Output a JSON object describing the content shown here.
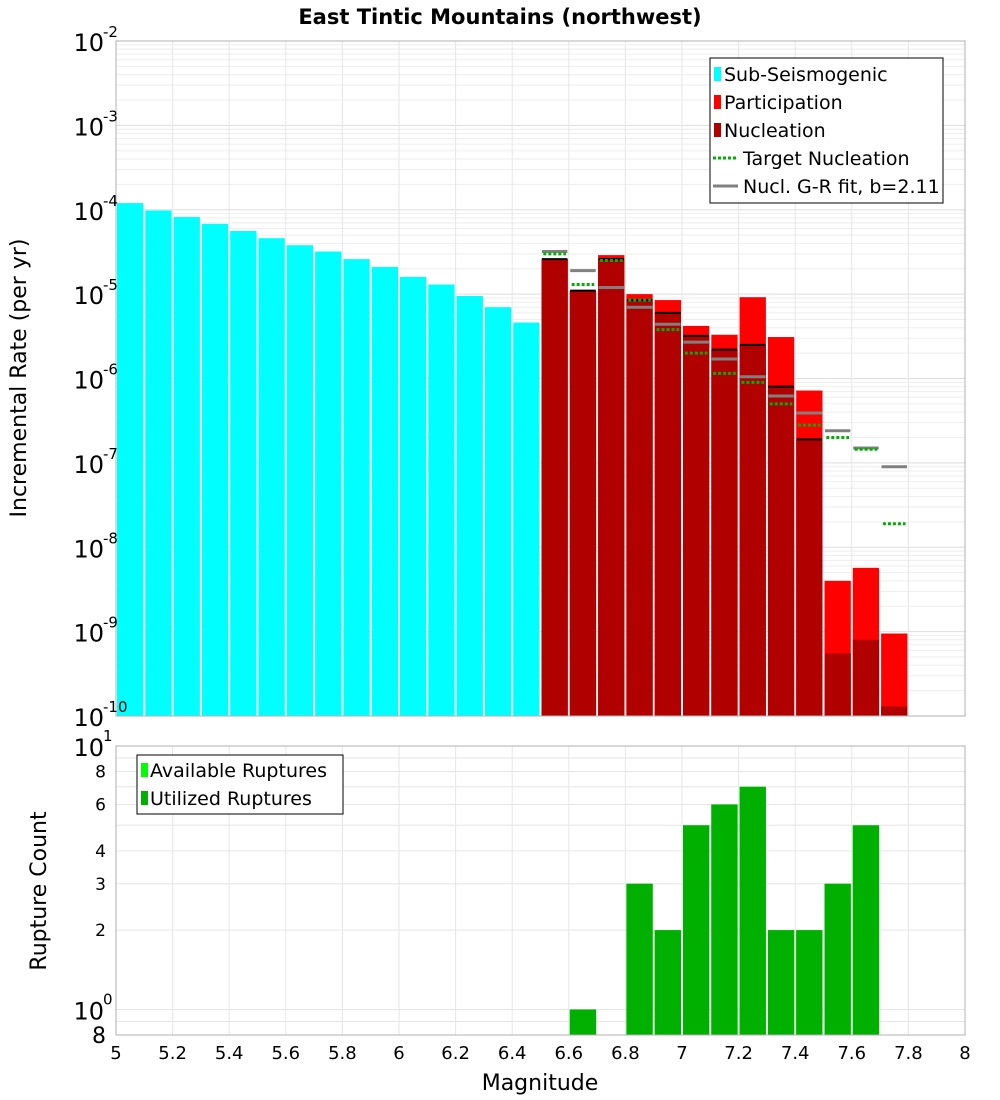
{
  "chart_data": [
    {
      "type": "bar",
      "title": "East Tintic Mountains (northwest)",
      "xlabel": "",
      "ylabel": "Incremental Rate (per yr)",
      "y_scale": "log",
      "xlim": [
        5,
        8
      ],
      "ylim": [
        1e-10,
        0.01
      ],
      "bin_width": 0.1,
      "grid": true,
      "legend_position": "top-right",
      "ytick_labels": [
        {
          "base": "10",
          "exp": "-10"
        },
        {
          "base": "10",
          "exp": "-9"
        },
        {
          "base": "10",
          "exp": "-8"
        },
        {
          "base": "10",
          "exp": "-7"
        },
        {
          "base": "10",
          "exp": "-6"
        },
        {
          "base": "10",
          "exp": "-5"
        },
        {
          "base": "10",
          "exp": "-4"
        },
        {
          "base": "10",
          "exp": "-3"
        },
        {
          "base": "10",
          "exp": "-2"
        }
      ],
      "legend": [
        {
          "label": "Sub-Seismogenic",
          "color": "#00ffff",
          "style": "bar"
        },
        {
          "label": "Participation",
          "color": "#ff0000",
          "style": "bar"
        },
        {
          "label": "Nucleation",
          "color": "#b00000",
          "style": "bar"
        },
        {
          "label": "Target Nucleation",
          "color": "#00b000",
          "style": "dotted"
        },
        {
          "label": "Nucl. G-R fit, b=2.11",
          "color": "#808080",
          "style": "line"
        }
      ],
      "series": [
        {
          "name": "Sub-Seismogenic",
          "color": "#00ffff",
          "x": [
            5.05,
            5.15,
            5.25,
            5.35,
            5.45,
            5.55,
            5.65,
            5.75,
            5.85,
            5.95,
            6.05,
            6.15,
            6.25,
            6.35,
            6.45
          ],
          "values": [
            0.00012,
            9.8e-05,
            8.2e-05,
            6.8e-05,
            5.6e-05,
            4.6e-05,
            3.8e-05,
            3.2e-05,
            2.6e-05,
            2.1e-05,
            1.6e-05,
            1.3e-05,
            9.5e-06,
            7e-06,
            4.6e-06
          ]
        },
        {
          "name": "Participation",
          "color": "#ff0000",
          "x": [
            6.55,
            6.65,
            6.75,
            6.85,
            6.95,
            7.05,
            7.15,
            7.25,
            7.35,
            7.45,
            7.55,
            7.65,
            7.75
          ],
          "values": [
            2.6e-05,
            1.1e-05,
            2.9e-05,
            1e-05,
            8.5e-06,
            4.2e-06,
            3.3e-06,
            9.2e-06,
            3.1e-06,
            7.2e-07,
            4e-09,
            5.7e-09,
            9.5e-10
          ]
        },
        {
          "name": "Nucleation",
          "color": "#b00000",
          "x": [
            6.55,
            6.65,
            6.75,
            6.85,
            6.95,
            7.05,
            7.15,
            7.25,
            7.35,
            7.45,
            7.55,
            7.65,
            7.75
          ],
          "values": [
            2.6e-05,
            1.1e-05,
            2.6e-05,
            8.5e-06,
            6e-06,
            3.2e-06,
            2.2e-06,
            2.5e-06,
            8e-07,
            1.9e-07,
            5.5e-10,
            8e-10,
            1.3e-10
          ]
        },
        {
          "name": "Target Nucleation",
          "color": "#00b000",
          "x": [
            6.55,
            6.65,
            6.75,
            6.85,
            6.95,
            7.05,
            7.15,
            7.25,
            7.35,
            7.45,
            7.55,
            7.65,
            7.75
          ],
          "values": [
            3e-05,
            1.3e-05,
            2.5e-05,
            8.5e-06,
            3.8e-06,
            2e-06,
            1.15e-06,
            9e-07,
            5e-07,
            2.8e-07,
            2e-07,
            1.45e-07,
            1.9e-08
          ]
        },
        {
          "name": "Nucl. G-R fit, b=2.11",
          "color": "#808080",
          "x": [
            6.55,
            6.65,
            6.75,
            6.85,
            6.95,
            7.05,
            7.15,
            7.25,
            7.35,
            7.45,
            7.55,
            7.65,
            7.75
          ],
          "values": [
            3.2e-05,
            1.9e-05,
            1.2e-05,
            7e-06,
            4.4e-06,
            2.7e-06,
            1.7e-06,
            1.05e-06,
            6.2e-07,
            3.9e-07,
            2.4e-07,
            1.5e-07,
            9e-08
          ]
        }
      ],
      "nucleation_marker_color": "#000000"
    },
    {
      "type": "bar",
      "title": "",
      "xlabel": "Magnitude",
      "ylabel": "Rupture Count",
      "y_scale": "log",
      "xlim": [
        5,
        8
      ],
      "ylim": [
        0.8,
        10
      ],
      "bin_width": 0.1,
      "grid": true,
      "legend_position": "top-left",
      "x_ticks": [
        5,
        5.2,
        5.4,
        5.6,
        5.8,
        6,
        6.2,
        6.4,
        6.6,
        6.8,
        7,
        7.2,
        7.4,
        7.6,
        7.8,
        8
      ],
      "x_tick_labels": [
        "5",
        "5.2",
        "5.4",
        "5.6",
        "5.8",
        "6",
        "6.2",
        "6.4",
        "6.6",
        "6.8",
        "7",
        "7.2",
        "7.4",
        "7.6",
        "7.8",
        "8"
      ],
      "y_minor_labels": [
        {
          "value": 8,
          "label": "8"
        },
        {
          "value": 6,
          "label": "6"
        },
        {
          "value": 4,
          "label": "4"
        },
        {
          "value": 3,
          "label": "3"
        },
        {
          "value": 2,
          "label": "2"
        }
      ],
      "y_major_labels": [
        {
          "value": 10,
          "base": "10",
          "exp": "1"
        },
        {
          "value": 1,
          "base": "10",
          "exp": "0"
        }
      ],
      "y_bottom_label": {
        "value": 0.8,
        "label": "8"
      },
      "legend": [
        {
          "label": "Available Ruptures",
          "color": "#00ff00",
          "style": "bar"
        },
        {
          "label": "Utilized Ruptures",
          "color": "#00b000",
          "style": "bar"
        }
      ],
      "series": [
        {
          "name": "Available Ruptures",
          "color": "#00ff00",
          "x": [
            6.65,
            6.85,
            6.95,
            7.05,
            7.15,
            7.25,
            7.35,
            7.45,
            7.55,
            7.65
          ],
          "values": [
            1,
            3,
            2,
            5,
            6,
            7,
            2,
            2,
            3,
            5
          ]
        },
        {
          "name": "Utilized Ruptures",
          "color": "#00b000",
          "x": [
            6.65,
            6.85,
            6.95,
            7.05,
            7.15,
            7.25,
            7.35,
            7.45,
            7.55,
            7.65
          ],
          "values": [
            1,
            3,
            2,
            5,
            6,
            7,
            2,
            2,
            3,
            5
          ]
        }
      ]
    }
  ]
}
